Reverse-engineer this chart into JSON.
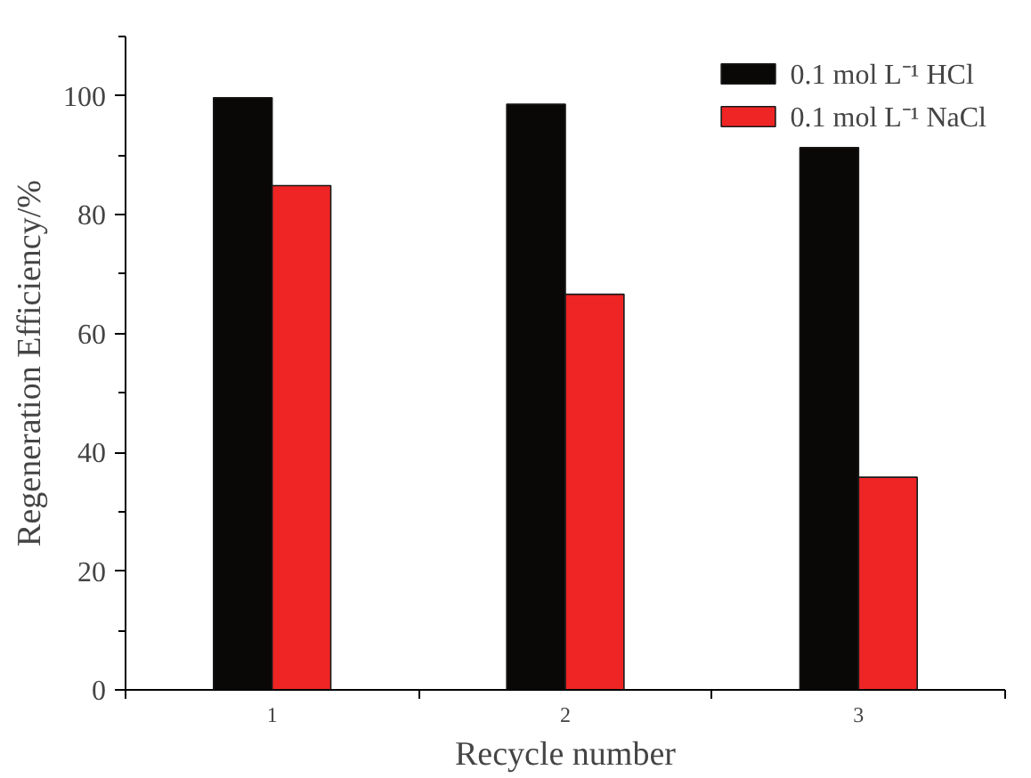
{
  "chart_data": {
    "type": "bar",
    "xlabel": "Recycle number",
    "ylabel": "Regeneration Efficiency/%",
    "categories": [
      "1",
      "2",
      "3"
    ],
    "series": [
      {
        "name": "0.1 mol L⁻¹ HCl",
        "color": "#0a0806",
        "values": [
          99.7,
          98.6,
          91.3
        ]
      },
      {
        "name": "0.1 mol L⁻¹ NaCl",
        "color": "#ee2524",
        "values": [
          84.9,
          66.6,
          35.8
        ]
      }
    ],
    "ylim": [
      0,
      110
    ],
    "yticks": [
      0,
      20,
      40,
      60,
      80,
      100
    ],
    "grid": false,
    "legend": "top right"
  }
}
